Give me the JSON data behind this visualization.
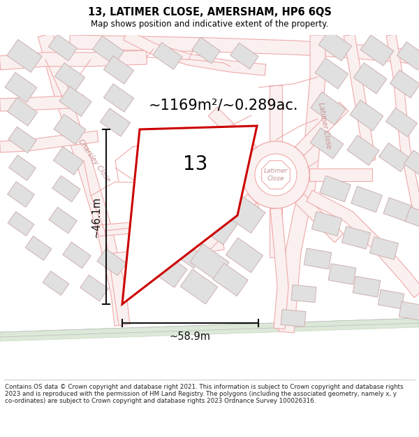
{
  "title": "13, LATIMER CLOSE, AMERSHAM, HP6 6QS",
  "subtitle": "Map shows position and indicative extent of the property.",
  "footer": "Contains OS data © Crown copyright and database right 2021. This information is subject to Crown copyright and database rights 2023 and is reproduced with the permission of HM Land Registry. The polygons (including the associated geometry, namely x, y co-ordinates) are subject to Crown copyright and database rights 2023 Ordnance Survey 100026316.",
  "area_text": "~1169m²/~0.289ac.",
  "label_13": "13",
  "dim_width": "~58.9m",
  "dim_height": "~46.1m",
  "bg_color": "#ffffff",
  "road_line_color": "#f0aaaa",
  "road_fill_color": "#f8e0e0",
  "building_fill": "#e0e0e0",
  "building_edge": "#d0b0b0",
  "plot_edge": "#cc0000",
  "plot_lw": 2.2,
  "dim_color": "#111111",
  "grass_color": "#dce8d8",
  "figsize": [
    6.0,
    6.25
  ],
  "dpi": 100
}
